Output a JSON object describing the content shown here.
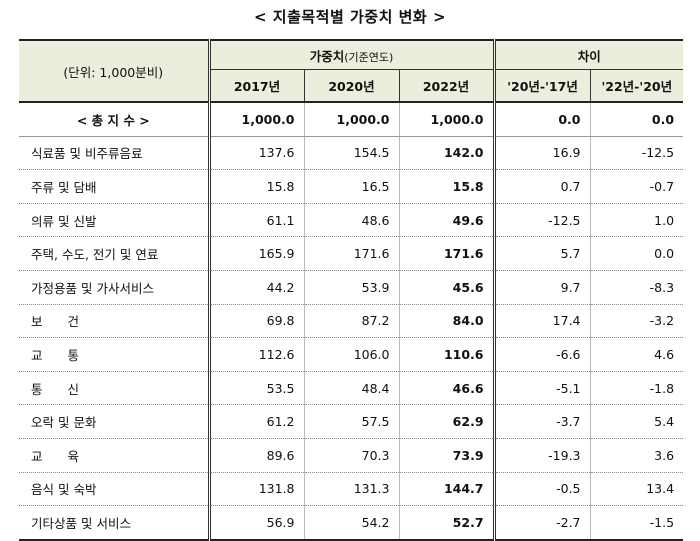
{
  "title": "< 지출목적별 가중치 변화 >",
  "header": {
    "unit": "(단위: 1,000분비)",
    "weight_main": "가중치",
    "weight_sub": "(기준연도)",
    "diff": "차이",
    "years": [
      "2017년",
      "2020년",
      "2022년"
    ],
    "diffs": [
      "'20년-'17년",
      "'22년-'20년"
    ]
  },
  "rows": [
    {
      "name": "< 총 지 수 >",
      "v2017": "1,000.0",
      "v2020": "1,000.0",
      "v2022": "1,000.0",
      "d1": "0.0",
      "d2": "0.0"
    },
    {
      "name": "식료품 및 비주류음료",
      "v2017": "137.6",
      "v2020": "154.5",
      "v2022": "142.0",
      "d1": "16.9",
      "d2": "-12.5"
    },
    {
      "name": "주류 및 담배",
      "v2017": "15.8",
      "v2020": "16.5",
      "v2022": "15.8",
      "d1": "0.7",
      "d2": "-0.7"
    },
    {
      "name": "의류 및 신발",
      "v2017": "61.1",
      "v2020": "48.6",
      "v2022": "49.6",
      "d1": "-12.5",
      "d2": "1.0"
    },
    {
      "name": "주택, 수도, 전기 및 연료",
      "v2017": "165.9",
      "v2020": "171.6",
      "v2022": "171.6",
      "d1": "5.7",
      "d2": "0.0"
    },
    {
      "name": "가정용품 및 가사서비스",
      "v2017": "44.2",
      "v2020": "53.9",
      "v2022": "45.6",
      "d1": "9.7",
      "d2": "-8.3"
    },
    {
      "name": "보　　건",
      "v2017": "69.8",
      "v2020": "87.2",
      "v2022": "84.0",
      "d1": "17.4",
      "d2": "-3.2"
    },
    {
      "name": "교　　통",
      "v2017": "112.6",
      "v2020": "106.0",
      "v2022": "110.6",
      "d1": "-6.6",
      "d2": "4.6"
    },
    {
      "name": "통　　신",
      "v2017": "53.5",
      "v2020": "48.4",
      "v2022": "46.6",
      "d1": "-5.1",
      "d2": "-1.8"
    },
    {
      "name": "오락 및 문화",
      "v2017": "61.2",
      "v2020": "57.5",
      "v2022": "62.9",
      "d1": "-3.7",
      "d2": "5.4"
    },
    {
      "name": "교　　육",
      "v2017": "89.6",
      "v2020": "70.3",
      "v2022": "73.9",
      "d1": "-19.3",
      "d2": "3.6"
    },
    {
      "name": "음식 및 숙박",
      "v2017": "131.8",
      "v2020": "131.3",
      "v2022": "144.7",
      "d1": "-0.5",
      "d2": "13.4"
    },
    {
      "name": "기타상품 및 서비스",
      "v2017": "56.9",
      "v2020": "54.2",
      "v2022": "52.7",
      "d1": "-2.7",
      "d2": "-1.5"
    }
  ]
}
